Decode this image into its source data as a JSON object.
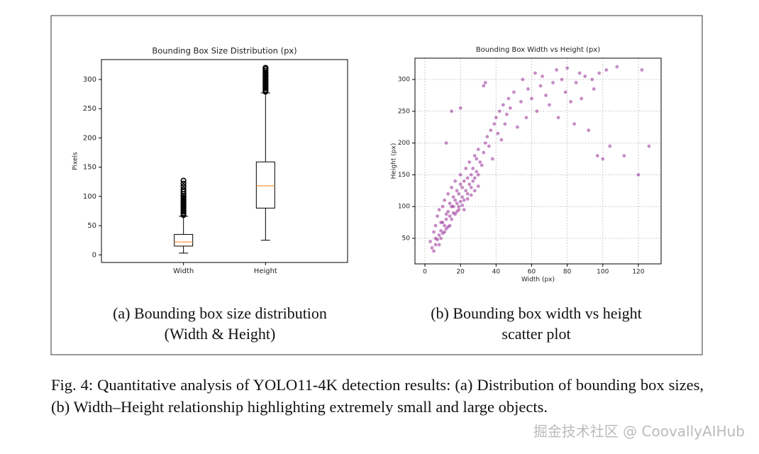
{
  "chart_data": [
    {
      "type": "box",
      "title": "Bounding Box Size Distribution (px)",
      "y_label": "Pixels",
      "categories": [
        "Width",
        "Height"
      ],
      "boxes": [
        {
          "whislo": 3,
          "q1": 15,
          "med": 22,
          "q3": 35,
          "whishi": 66,
          "fliers": [
            68,
            71,
            74,
            77,
            80,
            83,
            86,
            89,
            92,
            95,
            98,
            101,
            104,
            108,
            112,
            117,
            122,
            127
          ]
        },
        {
          "whislo": 25,
          "q1": 80,
          "med": 118,
          "q3": 159,
          "whishi": 277,
          "fliers": [
            279,
            282,
            285,
            288,
            291,
            294,
            297,
            300,
            303,
            306,
            309,
            312,
            315,
            318,
            320
          ]
        }
      ],
      "ylim": [
        -13,
        334
      ],
      "yticks": [
        0,
        50,
        100,
        150,
        200,
        250,
        300
      ],
      "grid": false,
      "box_color": "#000000",
      "median_color": "#ff7f0e",
      "caption": [
        "(a) Bounding box size distribution",
        "(Width & Height)"
      ]
    },
    {
      "type": "scatter",
      "title": "Bounding Box Width vs Height (px)",
      "x_label": "Width (px)",
      "y_label": "Height (px)",
      "x": [
        3,
        4,
        5,
        5,
        6,
        6,
        7,
        7,
        8,
        8,
        9,
        9,
        10,
        10,
        11,
        11,
        12,
        12,
        13,
        13,
        14,
        14,
        15,
        15,
        16,
        16,
        17,
        17,
        18,
        18,
        19,
        19,
        20,
        20,
        21,
        21,
        22,
        22,
        23,
        23,
        24,
        24,
        25,
        25,
        26,
        26,
        27,
        27,
        28,
        28,
        29,
        29,
        30,
        30,
        31,
        32,
        33,
        34,
        35,
        36,
        37,
        38,
        39,
        40,
        41,
        42,
        43,
        44,
        45,
        46,
        47,
        48,
        50,
        52,
        54,
        55,
        57,
        58,
        60,
        62,
        63,
        65,
        66,
        68,
        70,
        72,
        74,
        75,
        77,
        79,
        80,
        82,
        84,
        85,
        87,
        88,
        90,
        92,
        94,
        95,
        97,
        98,
        100,
        102,
        104,
        108,
        112,
        120,
        122,
        126,
        12,
        15,
        20,
        34,
        33,
        6,
        8,
        10,
        12,
        14,
        16,
        18,
        20,
        22,
        24,
        26,
        28,
        30,
        9,
        11,
        13,
        15,
        17,
        19,
        21
      ],
      "y": [
        45,
        35,
        30,
        60,
        40,
        70,
        48,
        85,
        55,
        95,
        62,
        75,
        58,
        100,
        70,
        110,
        80,
        65,
        92,
        120,
        85,
        105,
        100,
        130,
        90,
        115,
        110,
        140,
        105,
        125,
        120,
        95,
        135,
        150,
        115,
        130,
        140,
        110,
        125,
        160,
        120,
        145,
        135,
        170,
        130,
        150,
        160,
        140,
        145,
        180,
        155,
        175,
        150,
        190,
        170,
        165,
        185,
        200,
        210,
        195,
        220,
        175,
        230,
        240,
        215,
        250,
        205,
        260,
        230,
        245,
        270,
        255,
        280,
        225,
        265,
        300,
        240,
        285,
        270,
        310,
        250,
        290,
        305,
        275,
        260,
        295,
        315,
        240,
        300,
        280,
        318,
        265,
        230,
        295,
        310,
        270,
        305,
        220,
        300,
        285,
        180,
        310,
        175,
        315,
        195,
        320,
        180,
        150,
        315,
        195,
        200,
        250,
        255,
        295,
        290,
        50,
        40,
        75,
        88,
        70,
        100,
        92,
        108,
        95,
        112,
        118,
        125,
        132,
        50,
        60,
        68,
        80,
        88,
        100,
        102
      ],
      "color": "#800080",
      "xlim": [
        -5.6,
        132.8
      ],
      "xticks": [
        0,
        20,
        40,
        60,
        80,
        100,
        120
      ],
      "ylim": [
        9.8,
        333.5
      ],
      "yticks": [
        50,
        100,
        150,
        200,
        250,
        300
      ],
      "grid": true,
      "caption": [
        "(b) Bounding box width vs height",
        "scatter plot"
      ]
    }
  ],
  "figure_caption": "Fig. 4: Quantitative analysis of YOLO11-4K detection results: (a) Distribution of bounding box sizes, (b) Width–Height relationship highlighting extremely small and large objects.",
  "watermark": "掘金技术社区 @ CoovallyAIHub"
}
